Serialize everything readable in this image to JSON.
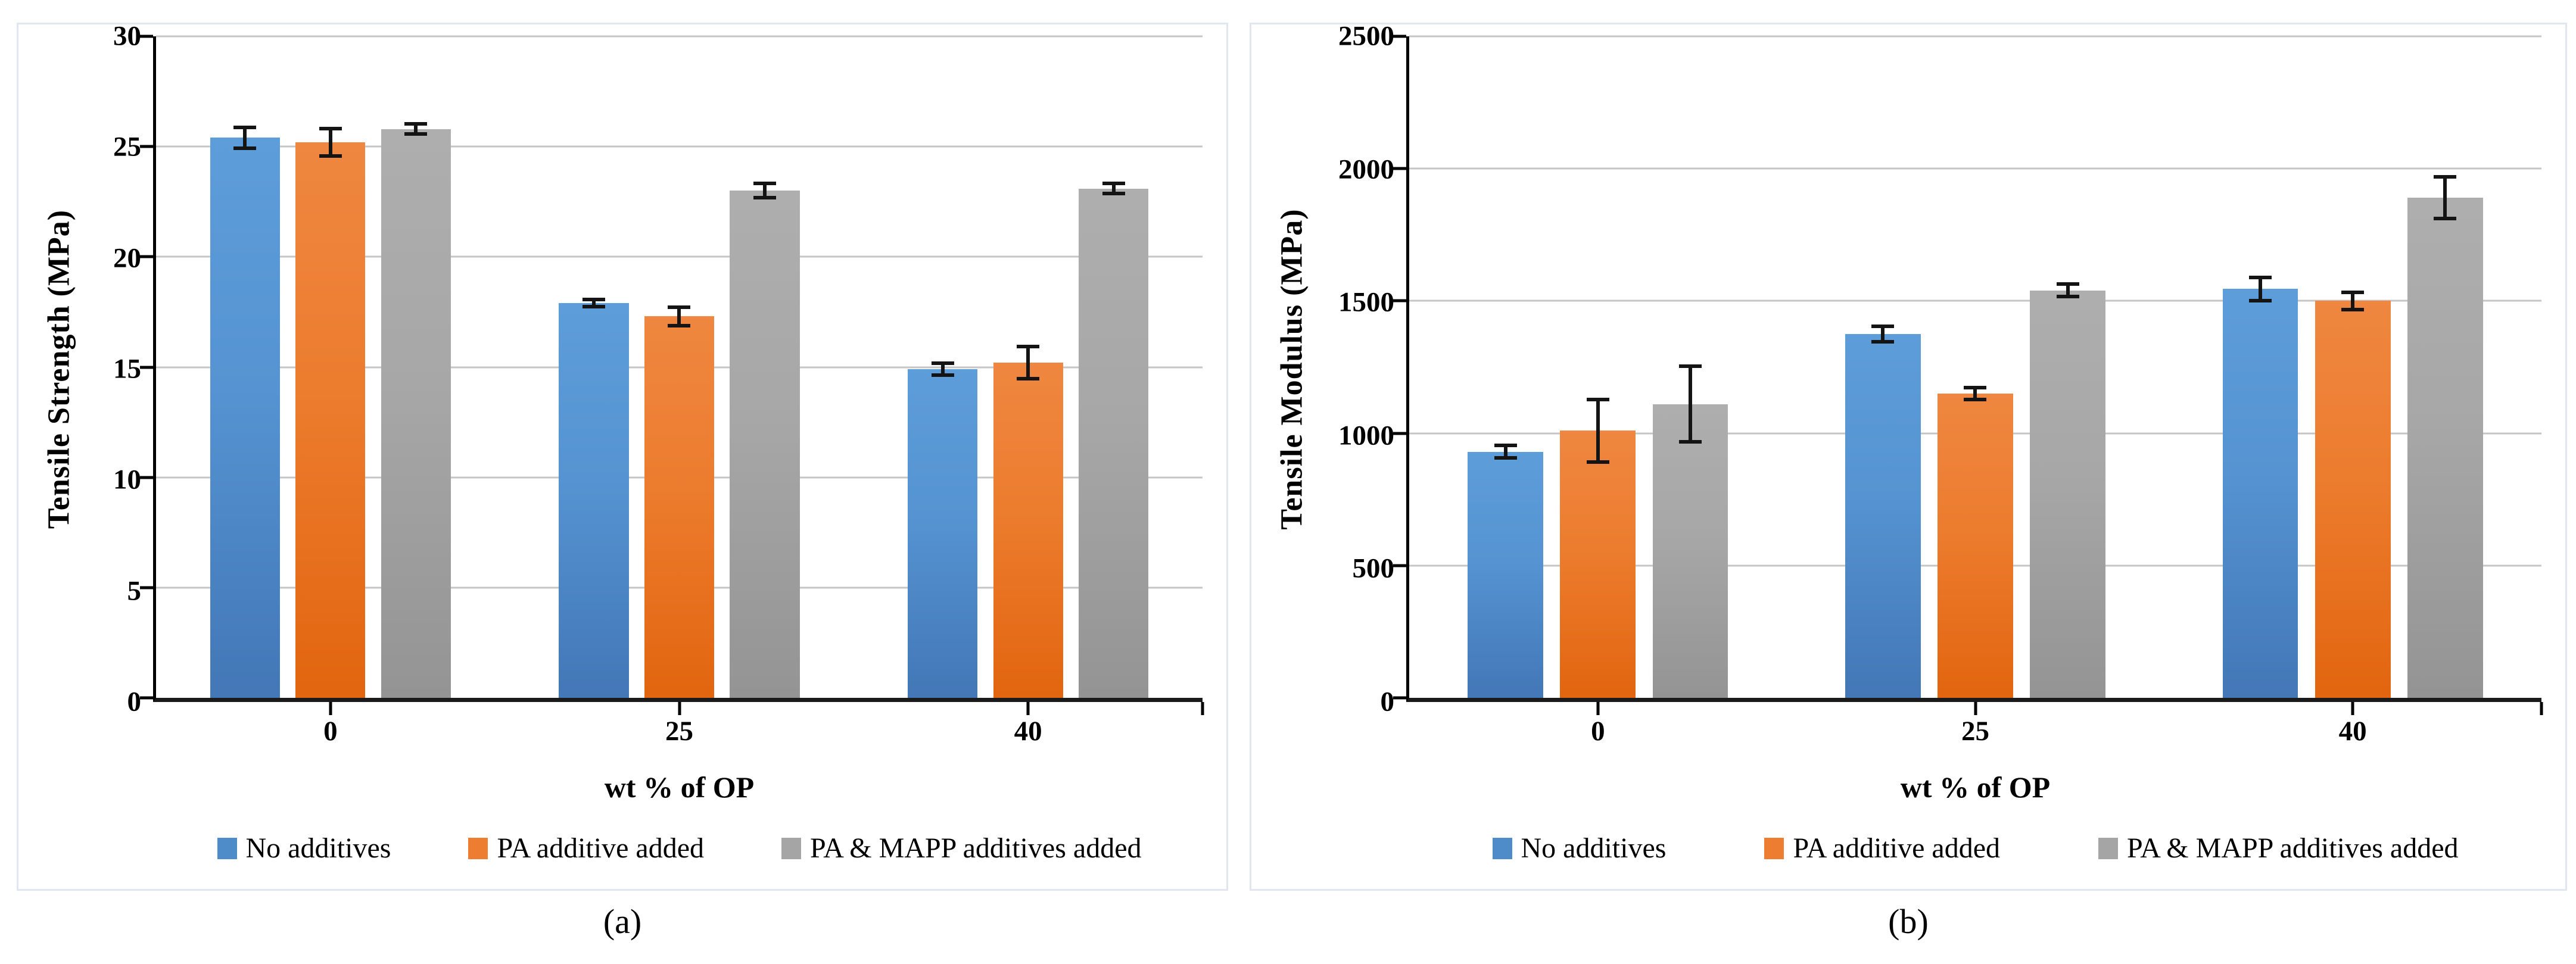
{
  "figure_caption_a": "(a)",
  "figure_caption_b": "(b)",
  "colors": {
    "series_blue": "#4d8bc9",
    "series_orange": "#ed7d31",
    "series_gray": "#a5a5a5",
    "gridline": "#c5c5c5",
    "axis": "#000000",
    "error_bar": "#141414",
    "panel_border": "#e1e6f0"
  },
  "chart_data": [
    {
      "type": "bar",
      "caption": "(a)",
      "title": "",
      "xlabel": "wt % of OP",
      "ylabel": "Tensile Strength (MPa)",
      "categories": [
        "0",
        "25",
        "40"
      ],
      "y_axis": {
        "title": "Tensile Strength (MPa)",
        "min": 0,
        "max": 30,
        "ticks": [
          0,
          5,
          10,
          15,
          20,
          25,
          30
        ]
      },
      "x_axis": {
        "title": "wt % of OP"
      },
      "grid": "horizontal",
      "legend_position": "bottom",
      "series": [
        {
          "name": "No additives",
          "color": "#4d8bc9",
          "values": [
            25.4,
            17.9,
            14.9
          ],
          "errors": [
            0.55,
            0.25,
            0.35
          ]
        },
        {
          "name": "PA additive added",
          "color": "#ed7d31",
          "values": [
            25.2,
            17.3,
            15.2
          ],
          "errors": [
            0.7,
            0.5,
            0.8
          ]
        },
        {
          "name": "PA & MAPP additives added",
          "color": "#a5a5a5",
          "values": [
            25.8,
            23.0,
            23.1
          ],
          "errors": [
            0.3,
            0.4,
            0.3
          ]
        }
      ]
    },
    {
      "type": "bar",
      "caption": "(b)",
      "title": "",
      "xlabel": "wt % of OP",
      "ylabel": "Tensile Modulus (MPa)",
      "categories": [
        "0",
        "25",
        "40"
      ],
      "y_axis": {
        "title": "Tensile Modulus (MPa)",
        "min": 0,
        "max": 2500,
        "ticks": [
          0,
          500,
          1000,
          1500,
          2000,
          2500
        ]
      },
      "x_axis": {
        "title": "wt % of OP"
      },
      "grid": "horizontal",
      "legend_position": "bottom",
      "series": [
        {
          "name": "No additives",
          "color": "#4d8bc9",
          "values": [
            930,
            1375,
            1545
          ],
          "errors": [
            30,
            35,
            50
          ]
        },
        {
          "name": "PA additive added",
          "color": "#ed7d31",
          "values": [
            1010,
            1150,
            1500
          ],
          "errors": [
            125,
            30,
            40
          ]
        },
        {
          "name": "PA & MAPP additives added",
          "color": "#a5a5a5",
          "values": [
            1110,
            1540,
            1890
          ],
          "errors": [
            150,
            30,
            85
          ]
        }
      ]
    }
  ]
}
